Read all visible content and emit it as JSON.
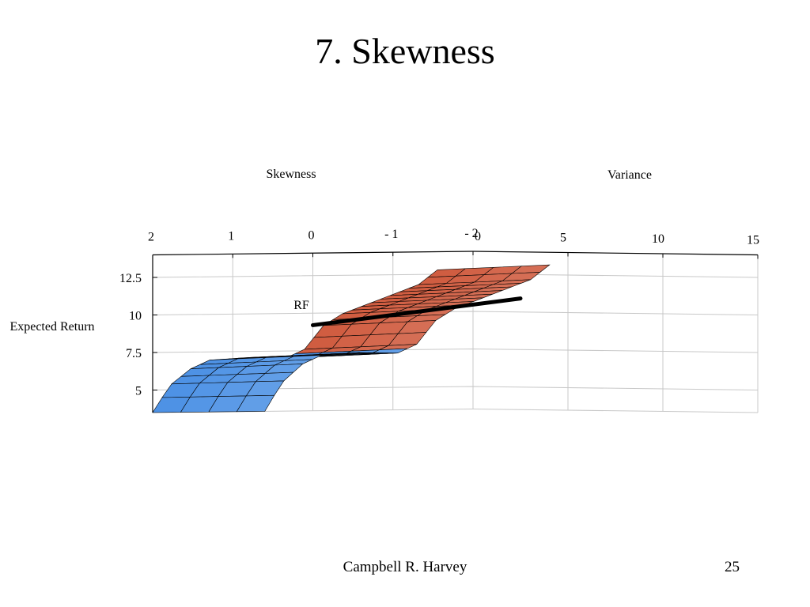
{
  "slide": {
    "title": "7. Skewness",
    "author": "Campbell R. Harvey",
    "page_number": "25"
  },
  "colors": {
    "surface_low_skew": "#2f7fe0",
    "surface_high_skew": "#c8401f",
    "axis": "#000000",
    "grid": "#c8c8c8",
    "mesh_line": "#000000"
  },
  "chart_data": {
    "type": "surface",
    "title": "",
    "x_axis": {
      "label": "Skewness",
      "ticks": [
        "2",
        "1",
        "0",
        "- 1",
        "- 2"
      ],
      "range": [
        2,
        -2
      ]
    },
    "y_axis": {
      "label": "Variance",
      "ticks": [
        "0",
        "5",
        "10",
        "15"
      ],
      "range": [
        0,
        15
      ]
    },
    "z_axis": {
      "label": "Expected Return",
      "ticks": [
        "5",
        "7.5",
        "10",
        "12.5"
      ],
      "range": [
        3.5,
        14
      ]
    },
    "annotations": [
      {
        "text": "RF"
      }
    ],
    "frontier_profile": [
      {
        "variance": 0,
        "expected_return": 3.5
      },
      {
        "variance": 0.5,
        "expected_return": 4.6
      },
      {
        "variance": 1,
        "expected_return": 5.6
      },
      {
        "variance": 2,
        "expected_return": 6.8
      },
      {
        "variance": 3,
        "expected_return": 7.4
      },
      {
        "variance": 5,
        "expected_return": 7.6
      },
      {
        "variance": 7,
        "expected_return": 7.6
      },
      {
        "variance": 8,
        "expected_return": 8.2
      },
      {
        "variance": 9,
        "expected_return": 9.8
      },
      {
        "variance": 10,
        "expected_return": 10.6
      },
      {
        "variance": 12,
        "expected_return": 11.6
      },
      {
        "variance": 14,
        "expected_return": 12.6
      },
      {
        "variance": 15,
        "expected_return": 13.6
      }
    ],
    "capital_market_line": [
      {
        "skewness": 0,
        "variance": 0,
        "expected_return": 9.2
      },
      {
        "skewness": -2,
        "variance": 2.5,
        "expected_return": 10.9
      }
    ],
    "grid": true,
    "legend": "none"
  }
}
